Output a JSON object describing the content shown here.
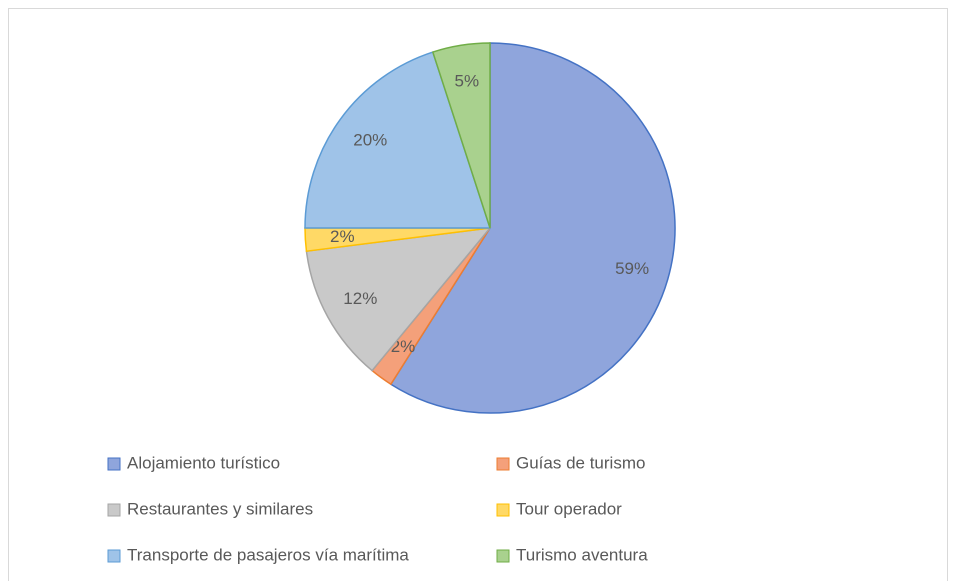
{
  "chart_data": {
    "type": "pie",
    "categories": [
      "Alojamiento turístico",
      "Guías de turismo",
      "Restaurantes y similares",
      "Tour operador",
      "Transporte de pasajeros vía marítima",
      "Turismo aventura"
    ],
    "values": [
      59,
      2,
      12,
      2,
      20,
      5
    ],
    "value_labels": [
      "59%",
      "2%",
      "12%",
      "2%",
      "20%",
      "5%"
    ],
    "colors": [
      "#8fa5dc",
      "#f4a07a",
      "#c9c9c9",
      "#ffd966",
      "#9fc3e8",
      "#a9d18e"
    ],
    "edge_colors": [
      "#4472c4",
      "#ed7d31",
      "#a5a5a5",
      "#ffc000",
      "#5b9bd5",
      "#70ad47"
    ],
    "legend": "bottom"
  }
}
